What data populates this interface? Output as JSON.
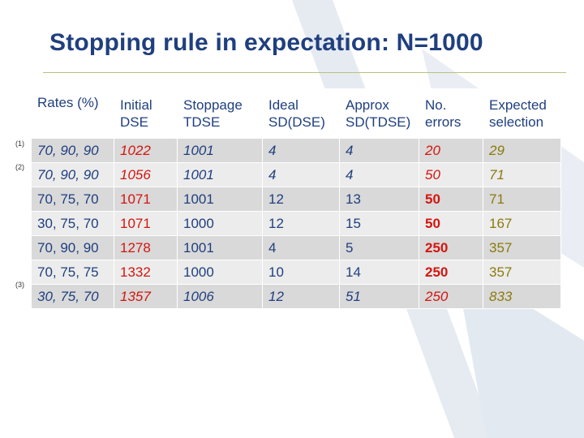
{
  "title": "Stopping rule in expectation: N=1000",
  "table": {
    "headers": [
      {
        "line1": "Rates (%)",
        "line2": ""
      },
      {
        "line1": "Initial",
        "line2": "DSE"
      },
      {
        "line1": "Stoppage",
        "line2": "TDSE"
      },
      {
        "line1": "Ideal",
        "line2": "SD(DSE)"
      },
      {
        "line1": "Approx",
        "line2": "SD(TDSE)"
      },
      {
        "line1": "No.",
        "line2": "errors"
      },
      {
        "line1": "Expected",
        "line2": "selection"
      }
    ],
    "rows": [
      {
        "ref": "(1)",
        "rates": "70, 90, 90",
        "initial": "1022",
        "stoppage": "1001",
        "ideal": "4",
        "approx": "4",
        "errors": "20",
        "expected": "29"
      },
      {
        "ref": "(2)",
        "rates": "70, 90, 90",
        "initial": "1056",
        "stoppage": "1001",
        "ideal": "4",
        "approx": "4",
        "errors": "50",
        "expected": "71"
      },
      {
        "ref": "",
        "rates": "70, 75, 70",
        "initial": "1071",
        "stoppage": "1001",
        "ideal": "12",
        "approx": "13",
        "errors": "50",
        "expected": "71"
      },
      {
        "ref": "",
        "rates": "30, 75, 70",
        "initial": "1071",
        "stoppage": "1000",
        "ideal": "12",
        "approx": "15",
        "errors": "50",
        "expected": "167"
      },
      {
        "ref": "",
        "rates": "70, 90, 90",
        "initial": "1278",
        "stoppage": "1001",
        "ideal": "4",
        "approx": "5",
        "errors": "250",
        "expected": "357"
      },
      {
        "ref": "",
        "rates": "70, 75, 75",
        "initial": "1332",
        "stoppage": "1000",
        "ideal": "10",
        "approx": "14",
        "errors": "250",
        "expected": "357"
      },
      {
        "ref": "(3)",
        "rates": "30, 75, 70",
        "initial": "1357",
        "stoppage": "1006",
        "ideal": "12",
        "approx": "51",
        "errors": "250",
        "expected": "833"
      }
    ]
  },
  "colors": {
    "title": "#1f3f7f",
    "text": "#1f3f7f",
    "initial_dse": "#d4150f",
    "errors": "#d4150f",
    "expected": "#8a7a0e",
    "row_shade_dark": "#d9d9d9",
    "row_shade_light": "#ececec",
    "watermark": "#eaeef4"
  }
}
